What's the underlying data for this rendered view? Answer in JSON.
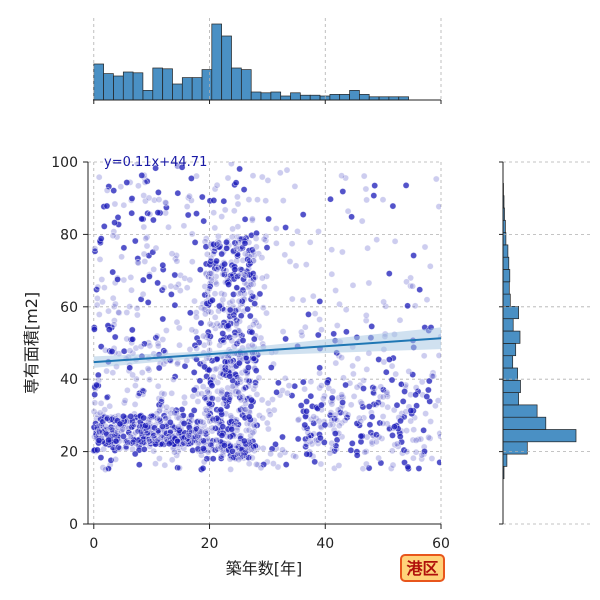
{
  "chart_data": {
    "type": "scatter",
    "subtype": "joint-plot with marginal histograms and regression line",
    "xlabel": "築年数[年]",
    "ylabel": "専有面積[m2]",
    "xlim": [
      -1,
      60
    ],
    "ylim": [
      0,
      100
    ],
    "x_ticks": [
      0,
      20,
      40,
      60
    ],
    "y_ticks": [
      0,
      20,
      40,
      60,
      80,
      100
    ],
    "grid": "dashed",
    "regression": {
      "equation_label": "y=0.11x+44.71",
      "slope": 0.11,
      "intercept": 44.71,
      "color": "#1f77b4",
      "band_color": "#a9c8e4"
    },
    "point_color": "#1a1ab8",
    "histogram_color": "#4a90c4",
    "badge": {
      "text": "港区",
      "fill": "#ffd27a",
      "border": "#e8561c"
    },
    "marginal_x_histogram": {
      "bin_width": 1.7,
      "start": 0,
      "counts": [
        45,
        33,
        30,
        35,
        34,
        12,
        40,
        39,
        20,
        28,
        28,
        38,
        95,
        80,
        40,
        38,
        10,
        9,
        10,
        5,
        9,
        6,
        6,
        5,
        7,
        7,
        12,
        7,
        4,
        4,
        4,
        4
      ]
    },
    "marginal_y_histogram": {
      "bin_width": 3.4,
      "start": 12.5,
      "counts": [
        2,
        8,
        50,
        150,
        88,
        70,
        32,
        36,
        30,
        20,
        26,
        35,
        21,
        32,
        15,
        13,
        14,
        12,
        10,
        6,
        5,
        3,
        2,
        1,
        0,
        0
      ]
    }
  }
}
